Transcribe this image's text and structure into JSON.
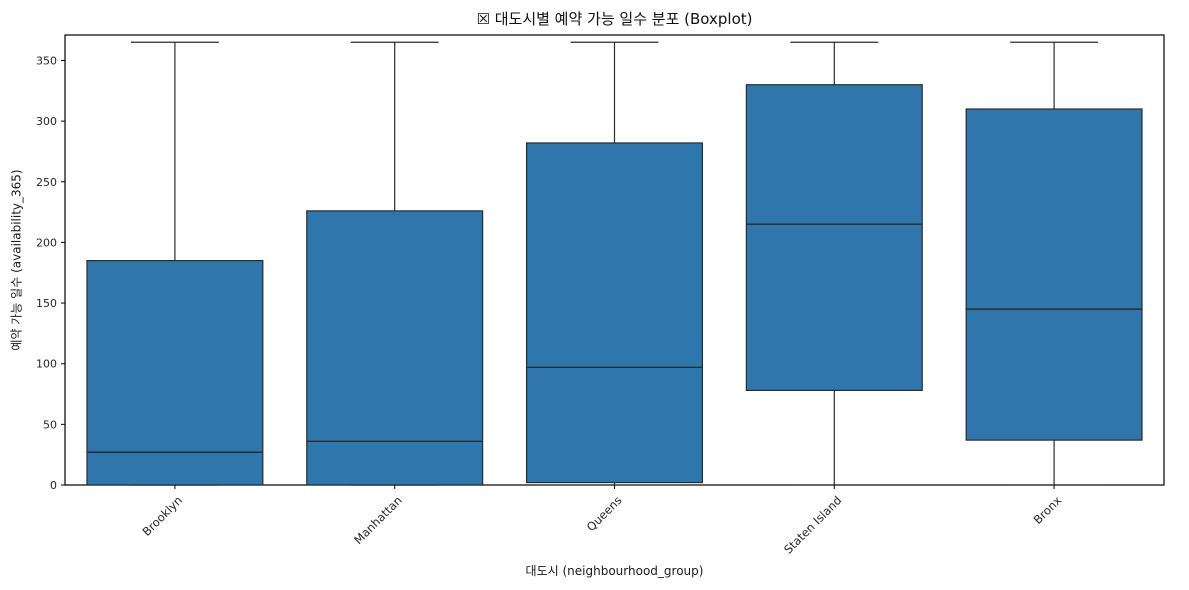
{
  "chart_data": {
    "type": "boxplot",
    "title": "☒ 대도시별 예약 가능 일수 분포 (Boxplot)",
    "xlabel": "대도시 (neighbourhood_group)",
    "ylabel": "예약 가능 일수 (availability_365)",
    "categories": [
      "Brooklyn",
      "Manhattan",
      "Queens",
      "Staten Island",
      "Bronx"
    ],
    "yticks": [
      0,
      50,
      100,
      150,
      200,
      250,
      300,
      350
    ],
    "ylim": [
      0,
      371
    ],
    "grid": false,
    "legend": null,
    "colors": {
      "box_fill": "#2e76ac",
      "box_edge": "#2b2b2b",
      "axis": "#000000",
      "text": "#262626",
      "background": "#ffffff"
    },
    "series": [
      {
        "name": "Brooklyn",
        "whisker_low": 0,
        "q1": 0,
        "median": 27,
        "q3": 185,
        "whisker_high": 365
      },
      {
        "name": "Manhattan",
        "whisker_low": 0,
        "q1": 0,
        "median": 36,
        "q3": 226,
        "whisker_high": 365
      },
      {
        "name": "Queens",
        "whisker_low": 0,
        "q1": 2,
        "median": 97,
        "q3": 282,
        "whisker_high": 365
      },
      {
        "name": "Staten Island",
        "whisker_low": 0,
        "q1": 78,
        "median": 215,
        "q3": 330,
        "whisker_high": 365
      },
      {
        "name": "Bronx",
        "whisker_low": 0,
        "q1": 37,
        "median": 145,
        "q3": 310,
        "whisker_high": 365
      }
    ]
  }
}
